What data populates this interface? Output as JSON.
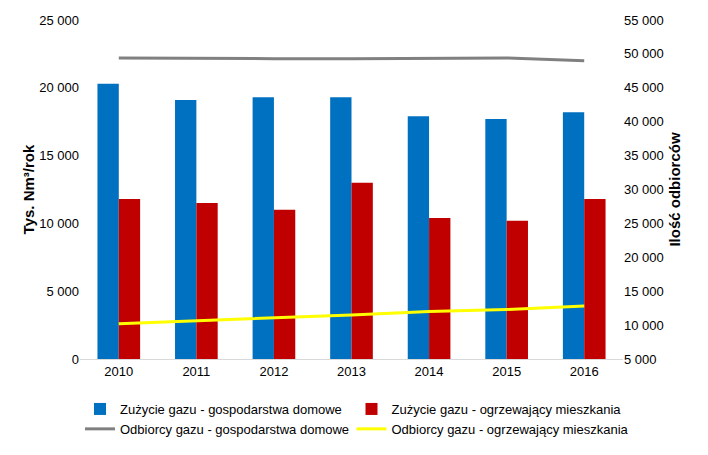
{
  "chart_data": {
    "type": "bar",
    "categories": [
      "2010",
      "2011",
      "2012",
      "2013",
      "2014",
      "2015",
      "2016"
    ],
    "y_label": "Tys. Nm³/rok",
    "y2_label": "Ilość odbiorców",
    "series": [
      {
        "name": "Zużycie gazu - gospodarstwa domowe",
        "type": "bar",
        "color": "#0070C0",
        "values": [
          20300,
          19100,
          19300,
          19300,
          17900,
          17700,
          18200
        ]
      },
      {
        "name": "Zużycie gazu - ogrzewający mieszkania",
        "type": "bar",
        "color": "#C00000",
        "values": [
          11800,
          11500,
          11000,
          13000,
          10400,
          10200,
          11800
        ]
      },
      {
        "name": "Odbiorcy gazu - gospodarstwa domowe",
        "type": "line",
        "color": "#808080",
        "axis": "y2",
        "values": [
          49400,
          49300,
          49300,
          49300,
          49400,
          49400,
          49000
        ]
      },
      {
        "name": "Odbiorcy gazu - ogrzewający mieszkania",
        "type": "line",
        "color": "#FFFF00",
        "axis": "y2",
        "values": [
          10200,
          10600,
          11000,
          11500,
          12000,
          12300,
          12800
        ]
      }
    ],
    "ylim": [
      0,
      25000
    ],
    "yticks": [
      0,
      {
        "value": 5000,
        "label": "5 000"
      },
      {
        "value": 10000,
        "label": "10 000"
      },
      {
        "value": 15000,
        "label": "15 000"
      },
      {
        "value": 20000,
        "label": "20 000"
      },
      {
        "value": 25000,
        "label": "25 000"
      }
    ],
    "y2lim": [
      5000,
      55000
    ],
    "y2ticks": [
      {
        "value": 5000,
        "label": "5 000"
      },
      {
        "value": 10000,
        "label": "10 000"
      },
      {
        "value": 15000,
        "label": "15 000"
      },
      {
        "value": 20000,
        "label": "20 000"
      },
      {
        "value": 25000,
        "label": "25 000"
      },
      {
        "value": 30000,
        "label": "30 000"
      },
      {
        "value": 35000,
        "label": "35 000"
      },
      {
        "value": 40000,
        "label": "40 000"
      },
      {
        "value": 45000,
        "label": "45 000"
      },
      {
        "value": 50000,
        "label": "50 000"
      },
      {
        "value": 55000,
        "label": "55 000"
      }
    ],
    "grid": false,
    "legend": "bottom"
  }
}
